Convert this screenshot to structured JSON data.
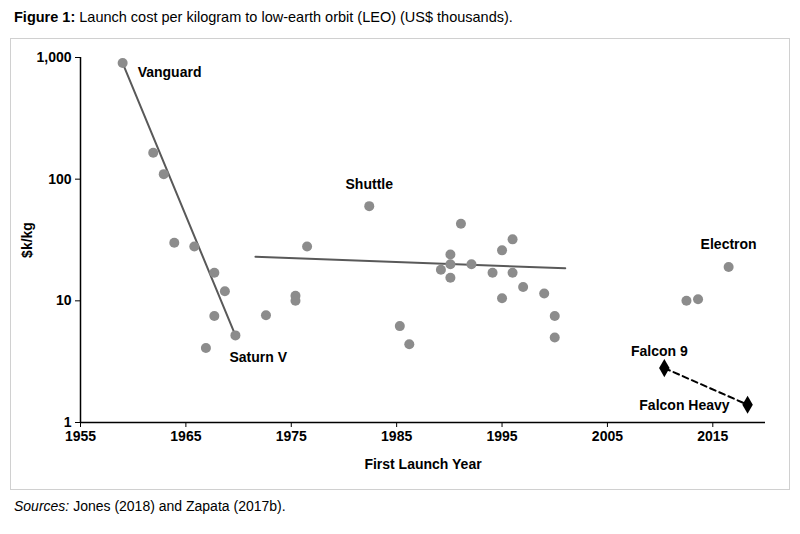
{
  "chart_data": {
    "type": "scatter",
    "title": "Figure 1:  Launch cost per kilogram to low-earth orbit (LEO) (US$ thousands).",
    "caption": "Sources: Jones (2018) and Zapata (2017b).",
    "x_label": "First Launch Year",
    "y_label": "$k/kg",
    "log": "y",
    "grid": false,
    "xlim": [
      1955,
      2020
    ],
    "xticks": [
      1955,
      1965,
      1975,
      1985,
      1995,
      2005,
      2015
    ],
    "ylim": [
      1,
      1000
    ],
    "yticks": [
      1,
      10,
      100,
      {
        "value": 1000,
        "label": "1,000"
      }
    ],
    "series": [
      {
        "type": "line",
        "color": "#595959",
        "line_style": "solid",
        "x": [
          1959,
          1969.7
        ],
        "values": [
          900,
          5.2
        ]
      },
      {
        "type": "line",
        "color": "#595959",
        "line_style": "solid",
        "x": [
          1971.6,
          2001
        ],
        "values": [
          23,
          18.5
        ]
      },
      {
        "type": "scatter",
        "color": "#8c8c8c",
        "marker": "circle",
        "x": [
          1959,
          1961.9,
          1962.9,
          1963.9,
          1965.8,
          1966.9,
          1967.7,
          1967.7,
          1968.7,
          1969.7,
          1972.6,
          1975.4,
          1975.4,
          1976.5,
          1982.4,
          1985.3,
          1986.2,
          1989.2,
          1990.1,
          1990.1,
          1990.1,
          1991.1,
          1992.1,
          1994.1,
          1995,
          1995,
          1996,
          1996,
          1997,
          1999,
          2000,
          2000,
          2012.5,
          2013.6,
          2016.5
        ],
        "values": [
          900,
          165,
          110,
          30,
          28,
          4.1,
          17,
          7.5,
          12,
          5.2,
          7.6,
          11,
          10,
          28,
          60,
          6.2,
          4.4,
          18,
          24,
          20,
          15.5,
          43,
          20,
          17,
          26,
          10.5,
          32,
          17,
          13,
          11.5,
          7.5,
          5,
          10,
          10.3,
          19
        ]
      },
      {
        "type": "line",
        "color": "#000000",
        "line_style": "dashed",
        "marker": "diamond",
        "x": [
          2010.4,
          2018.3
        ],
        "values": [
          2.8,
          1.4
        ]
      }
    ],
    "annotations": [
      {
        "text": "Vanguard",
        "x": 1959,
        "y": 900
      },
      {
        "text": "Shuttle",
        "x": 1982.4,
        "y": 60
      },
      {
        "text": "Saturn V",
        "x": 1969.7,
        "y": 5.2
      },
      {
        "text": "Electron",
        "x": 2016.5,
        "y": 19
      },
      {
        "text": "Falcon 9",
        "x": 2010.4,
        "y": 2.8
      },
      {
        "text": "Falcon Heavy",
        "x": 2018.3,
        "y": 1.4
      }
    ]
  }
}
